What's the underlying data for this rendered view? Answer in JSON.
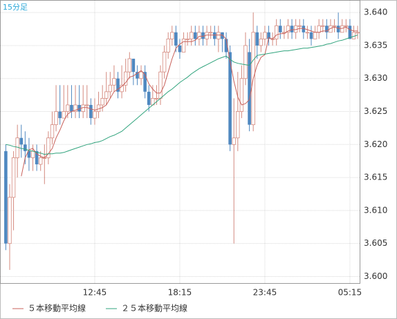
{
  "chart_data": {
    "type": "candlestick",
    "title": "15分足",
    "categories": [
      null,
      null,
      null,
      null,
      null,
      null,
      null,
      null,
      null,
      null,
      null,
      null,
      null,
      null,
      null,
      null,
      null,
      null,
      null,
      null,
      null,
      null,
      null,
      "12:45",
      null,
      null,
      null,
      null,
      null,
      null,
      null,
      null,
      null,
      null,
      null,
      null,
      null,
      null,
      null,
      null,
      null,
      null,
      null,
      null,
      null,
      "18:15",
      null,
      null,
      null,
      null,
      null,
      null,
      null,
      null,
      null,
      null,
      null,
      null,
      null,
      null,
      null,
      null,
      null,
      null,
      null,
      null,
      null,
      "23:45",
      null,
      null,
      null,
      null,
      null,
      null,
      null,
      null,
      null,
      null,
      null,
      null,
      null,
      null,
      null,
      null,
      null,
      null,
      null,
      null,
      null,
      "05:15",
      null,
      null
    ],
    "open": [
      3.619,
      3.605,
      3.612,
      3.618,
      3.621,
      3.62,
      3.619,
      3.618,
      3.619,
      3.617,
      3.618,
      3.618,
      3.621,
      3.623,
      3.625,
      3.624,
      3.625,
      3.626,
      3.625,
      3.626,
      3.625,
      3.626,
      3.626,
      3.624,
      3.625,
      3.626,
      3.627,
      3.628,
      3.629,
      3.63,
      3.628,
      3.629,
      3.631,
      3.633,
      3.631,
      3.63,
      3.631,
      3.628,
      3.626,
      3.627,
      3.627,
      3.631,
      3.634,
      3.636,
      3.637,
      3.635,
      3.634,
      3.636,
      3.636,
      3.637,
      3.636,
      3.637,
      3.636,
      3.637,
      3.637,
      3.636,
      3.637,
      3.636,
      3.634,
      3.62,
      3.621,
      3.625,
      3.63,
      3.634,
      3.623,
      3.637,
      3.635,
      3.636,
      3.637,
      3.636,
      3.636,
      3.638,
      3.637,
      3.637,
      3.638,
      3.637,
      3.638,
      3.638,
      3.637,
      3.637,
      3.636,
      3.637,
      3.638,
      3.638,
      3.637,
      3.638,
      3.638,
      3.637,
      3.638,
      3.638,
      3.636,
      3.637
    ],
    "high": [
      3.62,
      3.614,
      3.619,
      3.623,
      3.623,
      3.622,
      3.621,
      3.62,
      3.62,
      3.619,
      3.62,
      3.622,
      3.625,
      3.629,
      3.629,
      3.629,
      3.629,
      3.629,
      3.629,
      3.629,
      3.629,
      3.629,
      3.627,
      3.627,
      3.628,
      3.629,
      3.631,
      3.631,
      3.632,
      3.631,
      3.632,
      3.633,
      3.634,
      3.633,
      3.632,
      3.632,
      3.632,
      3.629,
      3.629,
      3.629,
      3.632,
      3.635,
      3.637,
      3.638,
      3.638,
      3.636,
      3.637,
      3.637,
      3.638,
      3.638,
      3.638,
      3.638,
      3.638,
      3.638,
      3.638,
      3.638,
      3.637,
      3.637,
      3.635,
      3.627,
      3.631,
      3.632,
      3.637,
      3.636,
      3.64,
      3.638,
      3.637,
      3.638,
      3.638,
      3.637,
      3.639,
      3.639,
      3.638,
      3.639,
      3.639,
      3.639,
      3.639,
      3.639,
      3.638,
      3.638,
      3.638,
      3.639,
      3.639,
      3.639,
      3.639,
      3.639,
      3.64,
      3.639,
      3.639,
      3.639,
      3.638,
      3.638
    ],
    "low": [
      3.604,
      3.601,
      3.607,
      3.615,
      3.618,
      3.617,
      3.616,
      3.616,
      3.616,
      3.616,
      3.614,
      3.617,
      3.62,
      3.622,
      3.623,
      3.624,
      3.624,
      3.624,
      3.624,
      3.624,
      3.624,
      3.624,
      3.623,
      3.623,
      3.624,
      3.625,
      3.626,
      3.627,
      3.628,
      3.627,
      3.627,
      3.628,
      3.63,
      3.629,
      3.629,
      3.629,
      3.627,
      3.625,
      3.626,
      3.626,
      3.626,
      3.63,
      3.633,
      3.635,
      3.634,
      3.633,
      3.634,
      3.635,
      3.635,
      3.635,
      3.635,
      3.635,
      3.635,
      3.636,
      3.635,
      3.634,
      3.634,
      3.633,
      3.619,
      3.605,
      3.619,
      3.624,
      3.629,
      3.622,
      3.622,
      3.633,
      3.634,
      3.635,
      3.635,
      3.635,
      3.635,
      3.636,
      3.636,
      3.636,
      3.636,
      3.636,
      3.637,
      3.636,
      3.636,
      3.635,
      3.636,
      3.636,
      3.637,
      3.636,
      3.637,
      3.637,
      3.636,
      3.637,
      3.637,
      3.636,
      3.636,
      3.636
    ],
    "close": [
      3.605,
      3.612,
      3.618,
      3.621,
      3.62,
      3.619,
      3.618,
      3.619,
      3.617,
      3.618,
      3.618,
      3.621,
      3.623,
      3.625,
      3.624,
      3.625,
      3.626,
      3.625,
      3.626,
      3.625,
      3.626,
      3.626,
      3.624,
      3.625,
      3.626,
      3.627,
      3.628,
      3.629,
      3.63,
      3.628,
      3.629,
      3.631,
      3.633,
      3.631,
      3.63,
      3.631,
      3.628,
      3.626,
      3.627,
      3.627,
      3.631,
      3.634,
      3.636,
      3.637,
      3.635,
      3.634,
      3.636,
      3.636,
      3.637,
      3.636,
      3.637,
      3.636,
      3.637,
      3.637,
      3.636,
      3.637,
      3.636,
      3.634,
      3.62,
      3.621,
      3.625,
      3.63,
      3.635,
      3.623,
      3.637,
      3.635,
      3.636,
      3.637,
      3.636,
      3.636,
      3.638,
      3.637,
      3.637,
      3.638,
      3.637,
      3.638,
      3.638,
      3.637,
      3.637,
      3.636,
      3.637,
      3.638,
      3.638,
      3.637,
      3.638,
      3.638,
      3.637,
      3.638,
      3.638,
      3.636,
      3.637,
      3.637
    ],
    "up_color": "#d4897e",
    "down_color": "#4f88c0",
    "series": [
      {
        "name": "５本移動平均線",
        "color": "#c8605a",
        "values": [
          null,
          null,
          null,
          null,
          3.6152,
          3.618,
          3.6192,
          3.6194,
          3.6186,
          3.6182,
          3.618,
          3.6186,
          3.6194,
          3.621,
          3.6222,
          3.6236,
          3.6246,
          3.625,
          3.6252,
          3.6254,
          3.6256,
          3.6256,
          3.6254,
          3.6252,
          3.6254,
          3.6256,
          3.626,
          3.627,
          3.628,
          3.6284,
          3.6288,
          3.6294,
          3.6302,
          3.6304,
          3.6308,
          3.6312,
          3.6306,
          3.6292,
          3.6284,
          3.6278,
          3.6278,
          3.629,
          3.631,
          3.633,
          3.6346,
          3.6352,
          3.6356,
          3.6356,
          3.6356,
          3.6358,
          3.6364,
          3.6364,
          3.6366,
          3.6366,
          3.6366,
          3.6366,
          3.6366,
          3.636,
          3.6326,
          3.6296,
          3.6272,
          3.626,
          3.6262,
          3.6268,
          3.63,
          3.632,
          3.6332,
          3.6336,
          3.6362,
          3.636,
          3.6366,
          3.6368,
          3.6368,
          3.6372,
          3.6374,
          3.6374,
          3.6376,
          3.6376,
          3.6374,
          3.6372,
          3.637,
          3.637,
          3.6372,
          3.6372,
          3.6376,
          3.6378,
          3.6376,
          3.6376,
          3.6378,
          3.6374,
          3.6372,
          3.6372
        ]
      },
      {
        "name": "２５本移動平均線",
        "color": "#2fa37c",
        "values": [
          3.62,
          3.6199,
          3.6197,
          3.6196,
          3.6194,
          3.6193,
          3.6191,
          3.619,
          3.6188,
          3.6187,
          3.6185,
          3.6186,
          3.6186,
          3.6187,
          3.6187,
          3.6188,
          3.619,
          3.6192,
          3.6194,
          3.6196,
          3.6198,
          3.62,
          3.6201,
          3.6203,
          3.6204,
          3.6206,
          3.6209,
          3.6212,
          3.6214,
          3.6217,
          3.622,
          3.6225,
          3.623,
          3.6235,
          3.624,
          3.6245,
          3.625,
          3.6255,
          3.626,
          3.6265,
          3.627,
          3.6275,
          3.628,
          3.6284,
          3.6289,
          3.6294,
          3.6298,
          3.6302,
          3.6307,
          3.6311,
          3.6315,
          3.6318,
          3.6321,
          3.6324,
          3.6327,
          3.633,
          3.6332,
          3.6334,
          3.6329,
          3.6325,
          3.6323,
          3.6322,
          3.6321,
          3.632,
          3.6328,
          3.6335,
          3.6336,
          3.6337,
          3.6338,
          3.6339,
          3.634,
          3.6341,
          3.6342,
          3.6342,
          3.6343,
          3.6344,
          3.6345,
          3.6346,
          3.6346,
          3.6347,
          3.6348,
          3.6349,
          3.635,
          3.6352,
          3.6353,
          3.6355,
          3.6357,
          3.6358,
          3.636,
          3.6362,
          3.6364,
          3.6366
        ]
      }
    ],
    "ylim": [
      3.599,
      3.6419
    ],
    "yticks": [
      {
        "value": 3.6,
        "label": "3.600"
      },
      3.605,
      {
        "value": 3.61,
        "label": "3.610"
      },
      3.615,
      {
        "value": 3.62,
        "label": "3.620"
      },
      3.625,
      {
        "value": 3.63,
        "label": "3.630"
      },
      3.635,
      {
        "value": 3.64,
        "label": "3.640"
      }
    ],
    "grid": true
  }
}
